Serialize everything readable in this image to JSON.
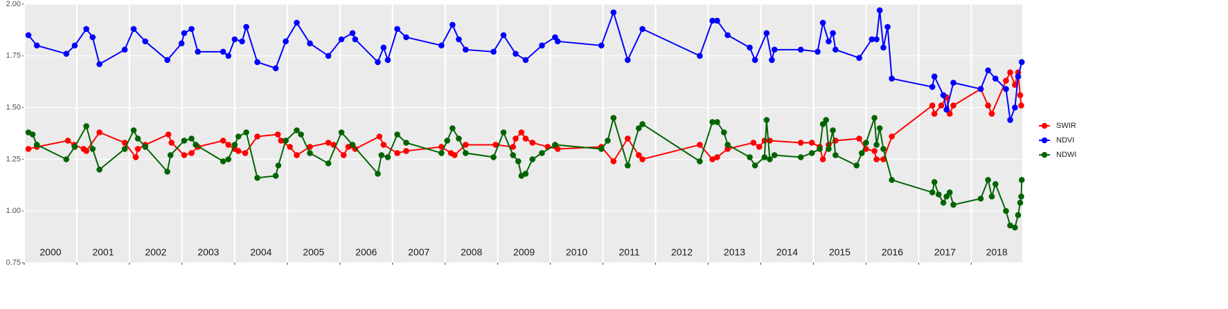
{
  "chart_data": {
    "type": "line",
    "xlim": [
      2000,
      2018.97
    ],
    "xticks": [
      2000,
      2001,
      2002,
      2003,
      2004,
      2005,
      2006,
      2007,
      2008,
      2009,
      2010,
      2011,
      2012,
      2013,
      2014,
      2015,
      2016,
      2017,
      2018
    ],
    "year_labels": [
      "2000",
      "2001",
      "2002",
      "2003",
      "2004",
      "2005",
      "2006",
      "2007",
      "2008",
      "2009",
      "2010",
      "2011",
      "2012",
      "2013",
      "2014",
      "2015",
      "2016",
      "2017",
      "2018"
    ],
    "ylim": [
      0.75,
      2.0
    ],
    "yticks": [
      {
        "value": 0.75,
        "label": "0.75"
      },
      {
        "value": 1.0,
        "label": "1.00"
      },
      {
        "value": 1.25,
        "label": "1.25"
      },
      {
        "value": 1.5,
        "label": "1.50"
      },
      {
        "value": 1.75,
        "label": "1.75"
      },
      {
        "value": 2.0,
        "label": "2.00"
      }
    ],
    "grid": true,
    "legend": "right",
    "series": [
      {
        "name": "SWIR",
        "color": "#ff0000",
        "x": [
          2000.08,
          2000.24,
          2000.83,
          2000.95,
          2001.13,
          2001.18,
          2001.43,
          2001.91,
          2002.12,
          2002.16,
          2002.3,
          2002.74,
          2002.8,
          2003.04,
          2003.18,
          2003.3,
          2003.78,
          2003.88,
          2004.0,
          2004.07,
          2004.2,
          2004.43,
          2004.82,
          2004.88,
          2005.05,
          2005.18,
          2005.43,
          2005.78,
          2005.88,
          2006.07,
          2006.16,
          2006.29,
          2006.75,
          2006.83,
          2007.09,
          2007.26,
          2007.93,
          2008.11,
          2008.18,
          2008.39,
          2008.96,
          2009.29,
          2009.34,
          2009.45,
          2009.53,
          2009.66,
          2009.95,
          2010.14,
          2010.97,
          2011.2,
          2011.47,
          2011.68,
          2011.75,
          2012.84,
          2013.08,
          2013.17,
          2013.37,
          2013.86,
          2013.97,
          2014.07,
          2014.17,
          2014.76,
          2014.97,
          2015.12,
          2015.18,
          2015.29,
          2015.42,
          2015.87,
          2016.0,
          2016.16,
          2016.2,
          2016.33,
          2016.49,
          2017.26,
          2017.3,
          2017.43,
          2017.53,
          2017.59,
          2017.66,
          2018.18,
          2018.32,
          2018.39,
          2018.66,
          2018.74,
          2018.83,
          2018.89,
          2018.93,
          2018.95
        ],
        "values": [
          1.3,
          1.31,
          1.34,
          1.32,
          1.3,
          1.29,
          1.38,
          1.33,
          1.26,
          1.3,
          1.32,
          1.37,
          1.33,
          1.27,
          1.28,
          1.31,
          1.34,
          1.32,
          1.3,
          1.29,
          1.28,
          1.36,
          1.37,
          1.34,
          1.31,
          1.27,
          1.31,
          1.33,
          1.32,
          1.27,
          1.31,
          1.3,
          1.36,
          1.32,
          1.28,
          1.29,
          1.31,
          1.28,
          1.27,
          1.32,
          1.32,
          1.31,
          1.35,
          1.38,
          1.35,
          1.33,
          1.31,
          1.3,
          1.31,
          1.24,
          1.35,
          1.27,
          1.25,
          1.32,
          1.25,
          1.26,
          1.3,
          1.33,
          1.31,
          1.34,
          1.34,
          1.33,
          1.33,
          1.31,
          1.25,
          1.32,
          1.34,
          1.35,
          1.3,
          1.29,
          1.25,
          1.25,
          1.36,
          1.51,
          1.47,
          1.51,
          1.55,
          1.47,
          1.51,
          1.59,
          1.51,
          1.47,
          1.63,
          1.67,
          1.61,
          1.67,
          1.56,
          1.51
        ]
      },
      {
        "name": "NDVI",
        "color": "#0000ff",
        "x": [
          2000.08,
          2000.24,
          2000.8,
          2000.96,
          2001.18,
          2001.3,
          2001.43,
          2001.91,
          2002.08,
          2002.3,
          2002.72,
          2002.99,
          2003.04,
          2003.18,
          2003.3,
          2003.78,
          2003.88,
          2004.0,
          2004.14,
          2004.22,
          2004.43,
          2004.78,
          2004.97,
          2005.18,
          2005.43,
          2005.78,
          2006.03,
          2006.24,
          2006.29,
          2006.72,
          2006.83,
          2006.91,
          2007.09,
          2007.26,
          2007.93,
          2008.14,
          2008.26,
          2008.39,
          2008.92,
          2009.11,
          2009.34,
          2009.53,
          2009.84,
          2010.09,
          2010.14,
          2010.97,
          2011.2,
          2011.47,
          2011.75,
          2012.84,
          2013.08,
          2013.17,
          2013.37,
          2013.79,
          2013.89,
          2014.11,
          2014.21,
          2014.26,
          2014.76,
          2015.08,
          2015.18,
          2015.29,
          2015.37,
          2015.42,
          2015.87,
          2016.11,
          2016.2,
          2016.26,
          2016.33,
          2016.41,
          2016.49,
          2017.26,
          2017.3,
          2017.47,
          2017.53,
          2017.66,
          2018.18,
          2018.32,
          2018.46,
          2018.66,
          2018.74,
          2018.83,
          2018.89,
          2018.96
        ],
        "values": [
          1.85,
          1.8,
          1.76,
          1.8,
          1.88,
          1.84,
          1.71,
          1.78,
          1.88,
          1.82,
          1.73,
          1.81,
          1.86,
          1.88,
          1.77,
          1.77,
          1.75,
          1.83,
          1.82,
          1.89,
          1.72,
          1.69,
          1.82,
          1.91,
          1.81,
          1.75,
          1.83,
          1.86,
          1.83,
          1.72,
          1.79,
          1.73,
          1.88,
          1.84,
          1.8,
          1.9,
          1.83,
          1.78,
          1.77,
          1.85,
          1.76,
          1.73,
          1.8,
          1.84,
          1.82,
          1.8,
          1.96,
          1.73,
          1.88,
          1.75,
          1.92,
          1.92,
          1.85,
          1.79,
          1.73,
          1.86,
          1.73,
          1.78,
          1.78,
          1.77,
          1.91,
          1.82,
          1.86,
          1.78,
          1.74,
          1.83,
          1.83,
          1.97,
          1.79,
          1.89,
          1.64,
          1.6,
          1.65,
          1.56,
          1.49,
          1.62,
          1.59,
          1.68,
          1.64,
          1.59,
          1.44,
          1.5,
          1.65,
          1.72
        ]
      },
      {
        "name": "NDWI",
        "color": "#006400",
        "x": [
          2000.08,
          2000.16,
          2000.24,
          2000.8,
          2000.96,
          2001.18,
          2001.3,
          2001.43,
          2001.91,
          2002.08,
          2002.16,
          2002.3,
          2002.72,
          2002.78,
          2003.04,
          2003.18,
          2003.26,
          2003.78,
          2003.88,
          2004.0,
          2004.07,
          2004.22,
          2004.43,
          2004.78,
          2004.83,
          2004.97,
          2005.18,
          2005.26,
          2005.43,
          2005.78,
          2006.03,
          2006.24,
          2006.72,
          2006.79,
          2006.91,
          2007.09,
          2007.26,
          2007.93,
          2008.04,
          2008.14,
          2008.26,
          2008.39,
          2008.92,
          2009.11,
          2009.29,
          2009.39,
          2009.45,
          2009.53,
          2009.66,
          2009.84,
          2010.09,
          2010.97,
          2011.09,
          2011.2,
          2011.47,
          2011.68,
          2011.75,
          2012.84,
          2013.08,
          2013.17,
          2013.3,
          2013.37,
          2013.79,
          2013.89,
          2014.07,
          2014.11,
          2014.17,
          2014.26,
          2014.76,
          2014.97,
          2015.12,
          2015.18,
          2015.24,
          2015.29,
          2015.37,
          2015.42,
          2015.82,
          2015.92,
          2016.0,
          2016.16,
          2016.2,
          2016.26,
          2016.33,
          2016.49,
          2017.26,
          2017.3,
          2017.38,
          2017.47,
          2017.53,
          2017.59,
          2017.66,
          2018.18,
          2018.32,
          2018.39,
          2018.46,
          2018.66,
          2018.74,
          2018.83,
          2018.89,
          2018.93,
          2018.95,
          2018.96
        ],
        "values": [
          1.38,
          1.37,
          1.32,
          1.25,
          1.31,
          1.41,
          1.3,
          1.2,
          1.3,
          1.39,
          1.35,
          1.31,
          1.19,
          1.27,
          1.34,
          1.35,
          1.32,
          1.24,
          1.25,
          1.32,
          1.36,
          1.38,
          1.16,
          1.17,
          1.22,
          1.34,
          1.39,
          1.37,
          1.28,
          1.23,
          1.38,
          1.32,
          1.18,
          1.27,
          1.26,
          1.37,
          1.33,
          1.28,
          1.34,
          1.4,
          1.35,
          1.28,
          1.26,
          1.38,
          1.27,
          1.24,
          1.17,
          1.18,
          1.25,
          1.28,
          1.32,
          1.3,
          1.34,
          1.45,
          1.22,
          1.4,
          1.42,
          1.24,
          1.43,
          1.43,
          1.38,
          1.32,
          1.26,
          1.22,
          1.26,
          1.44,
          1.25,
          1.27,
          1.26,
          1.28,
          1.3,
          1.42,
          1.44,
          1.3,
          1.39,
          1.27,
          1.22,
          1.28,
          1.33,
          1.45,
          1.32,
          1.4,
          1.3,
          1.15,
          1.09,
          1.14,
          1.08,
          1.04,
          1.07,
          1.09,
          1.03,
          1.06,
          1.15,
          1.07,
          1.13,
          1.0,
          0.93,
          0.92,
          0.98,
          1.04,
          1.07,
          1.15
        ]
      }
    ]
  }
}
